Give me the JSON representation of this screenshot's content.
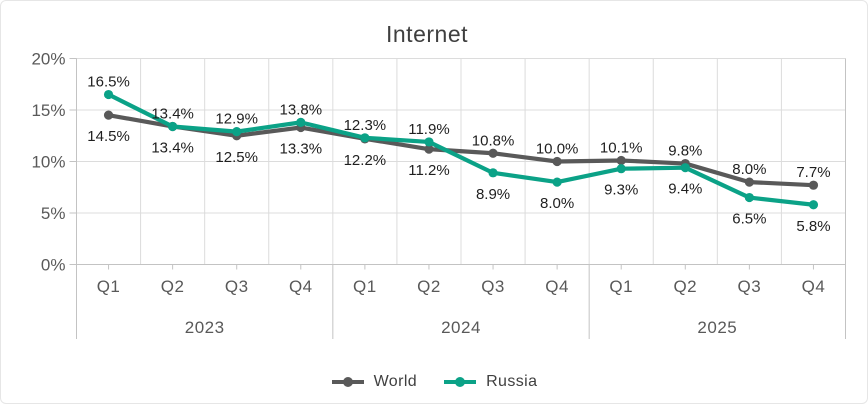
{
  "chart_data": {
    "type": "line",
    "title": "Internet",
    "categories": [
      "Q1",
      "Q2",
      "Q3",
      "Q4",
      "Q1",
      "Q2",
      "Q3",
      "Q4",
      "Q1",
      "Q2",
      "Q3",
      "Q4"
    ],
    "year_groups": [
      {
        "label": "2023",
        "count": 4
      },
      {
        "label": "2024",
        "count": 4
      },
      {
        "label": "2025",
        "count": 4
      }
    ],
    "series": [
      {
        "name": "World",
        "color": "#595959",
        "values": [
          14.5,
          13.4,
          12.5,
          13.3,
          12.2,
          11.2,
          10.8,
          10.0,
          10.1,
          9.8,
          8.0,
          7.7
        ]
      },
      {
        "name": "Russia",
        "color": "#0ba287",
        "values": [
          16.5,
          13.4,
          12.9,
          13.8,
          12.3,
          11.9,
          8.9,
          8.0,
          9.3,
          9.4,
          6.5,
          5.8
        ]
      }
    ],
    "ylim": [
      0,
      20
    ],
    "yticks": [
      {
        "value": 0,
        "label": "0%"
      },
      {
        "value": 5,
        "label": "5%"
      },
      {
        "value": 10,
        "label": "10%"
      },
      {
        "value": 15,
        "label": "15%"
      },
      {
        "value": 20,
        "label": "20%"
      }
    ],
    "grid": true,
    "data_labels": true,
    "label_suffix": "%",
    "legend_position": "bottom"
  },
  "style": {
    "grid_color": "#dcdcdc",
    "axis_color": "#c3c3c3",
    "tick_text_color": "#595959",
    "data_label_color": "#1f1f1f",
    "title_color": "#3f3f3f",
    "legend_text_color": "#404040",
    "background": "#ffffff"
  }
}
